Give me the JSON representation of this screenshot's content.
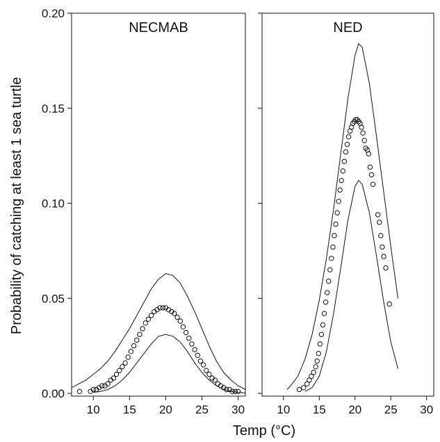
{
  "chart_data": {
    "type": "scatter",
    "ylabel": "Probability of catching at least 1 sea turtle",
    "xlabel": "Temp (°C)",
    "ylim": [
      0,
      0.2
    ],
    "yticks": [
      "0.00",
      "0.05",
      "0.10",
      "0.15",
      "0.20"
    ],
    "xticks": [
      "10",
      "15",
      "20",
      "25",
      "30"
    ],
    "grid": false,
    "panels": [
      {
        "title": "NECMAB",
        "xlim": [
          7,
          31
        ],
        "points": {
          "x": [
            8.1,
            9.6,
            10.0,
            10.4,
            10.8,
            11.2,
            11.6,
            12.0,
            12.4,
            12.8,
            13.2,
            13.6,
            14.0,
            14.4,
            14.8,
            15.2,
            15.6,
            16.0,
            16.4,
            16.8,
            17.2,
            17.6,
            18.0,
            18.4,
            18.8,
            19.2,
            19.6,
            20.0,
            20.4,
            20.8,
            21.2,
            21.6,
            22.0,
            22.4,
            22.8,
            23.2,
            23.6,
            24.0,
            24.4,
            24.8,
            25.2,
            25.6,
            26.0,
            26.4,
            26.8,
            27.2,
            27.6,
            28.0,
            28.4,
            28.8,
            29.2,
            29.6,
            30.0
          ],
          "y": [
            0.001,
            0.001,
            0.002,
            0.002,
            0.003,
            0.004,
            0.004,
            0.005,
            0.007,
            0.008,
            0.01,
            0.012,
            0.014,
            0.016,
            0.019,
            0.022,
            0.025,
            0.028,
            0.031,
            0.034,
            0.037,
            0.039,
            0.041,
            0.043,
            0.044,
            0.045,
            0.045,
            0.045,
            0.044,
            0.043,
            0.042,
            0.04,
            0.038,
            0.035,
            0.032,
            0.029,
            0.026,
            0.023,
            0.02,
            0.017,
            0.015,
            0.012,
            0.01,
            0.008,
            0.007,
            0.005,
            0.004,
            0.003,
            0.002,
            0.002,
            0.001,
            0.001,
            0.001
          ]
        },
        "upper": {
          "x": [
            7,
            8,
            9,
            10,
            11,
            12,
            13,
            14,
            15,
            16,
            17,
            18,
            19,
            20,
            21,
            22,
            23,
            24,
            25,
            26,
            27,
            28,
            29,
            30,
            31
          ],
          "y": [
            0.003,
            0.005,
            0.007,
            0.01,
            0.013,
            0.017,
            0.022,
            0.028,
            0.034,
            0.041,
            0.048,
            0.055,
            0.06,
            0.063,
            0.062,
            0.058,
            0.051,
            0.043,
            0.034,
            0.025,
            0.017,
            0.011,
            0.007,
            0.004,
            0.002
          ]
        },
        "lower": {
          "x": [
            10,
            11,
            12,
            13,
            14,
            15,
            16,
            17,
            18,
            19,
            20,
            21,
            22,
            23,
            24,
            25,
            26,
            27,
            28,
            29,
            30,
            31
          ],
          "y": [
            0.0005,
            0.001,
            0.002,
            0.004,
            0.007,
            0.011,
            0.016,
            0.021,
            0.026,
            0.03,
            0.031,
            0.03,
            0.027,
            0.022,
            0.016,
            0.011,
            0.007,
            0.004,
            0.002,
            0.001,
            0.0005,
            0.0002
          ]
        }
      },
      {
        "title": "NED",
        "xlim": [
          7,
          31
        ],
        "points": {
          "x": [
            12.2,
            12.8,
            13.3,
            13.6,
            13.9,
            14.2,
            14.5,
            14.7,
            14.9,
            15.1,
            15.3,
            15.5,
            15.7,
            15.9,
            16.1,
            16.3,
            16.5,
            16.7,
            16.9,
            17.1,
            17.3,
            17.5,
            17.7,
            17.9,
            18.1,
            18.3,
            18.5,
            18.7,
            18.9,
            19.1,
            19.3,
            19.5,
            19.7,
            19.9,
            20.1,
            20.3,
            20.5,
            20.7,
            20.9,
            21.1,
            21.3,
            21.5,
            21.7,
            21.9,
            22.1,
            22.3,
            22.5,
            23.2,
            23.4,
            23.6,
            23.8,
            24.0,
            24.3,
            24.8
          ],
          "y": [
            0.002,
            0.003,
            0.005,
            0.007,
            0.009,
            0.011,
            0.014,
            0.017,
            0.021,
            0.026,
            0.031,
            0.036,
            0.042,
            0.048,
            0.053,
            0.059,
            0.065,
            0.071,
            0.077,
            0.083,
            0.089,
            0.095,
            0.101,
            0.107,
            0.112,
            0.117,
            0.122,
            0.127,
            0.131,
            0.135,
            0.138,
            0.14,
            0.142,
            0.143,
            0.144,
            0.144,
            0.143,
            0.142,
            0.14,
            0.137,
            0.133,
            0.129,
            0.128,
            0.126,
            0.119,
            0.115,
            0.11,
            0.094,
            0.09,
            0.083,
            0.077,
            0.072,
            0.066,
            0.047
          ]
        },
        "upper": {
          "x": [
            10.5,
            11,
            12,
            13,
            14,
            15,
            16,
            17,
            18,
            19,
            20,
            20.5,
            21,
            22,
            23,
            24,
            25,
            26
          ],
          "y": [
            0.002,
            0.004,
            0.009,
            0.018,
            0.031,
            0.049,
            0.071,
            0.097,
            0.126,
            0.155,
            0.178,
            0.184,
            0.182,
            0.163,
            0.135,
            0.106,
            0.077,
            0.05
          ]
        },
        "lower": {
          "x": [
            13,
            14,
            15,
            16,
            17,
            18,
            19,
            20,
            20.5,
            21,
            22,
            23,
            24,
            25,
            26
          ],
          "y": [
            0.001,
            0.003,
            0.009,
            0.022,
            0.042,
            0.066,
            0.091,
            0.109,
            0.112,
            0.11,
            0.095,
            0.072,
            0.048,
            0.027,
            0.013
          ]
        }
      }
    ]
  }
}
